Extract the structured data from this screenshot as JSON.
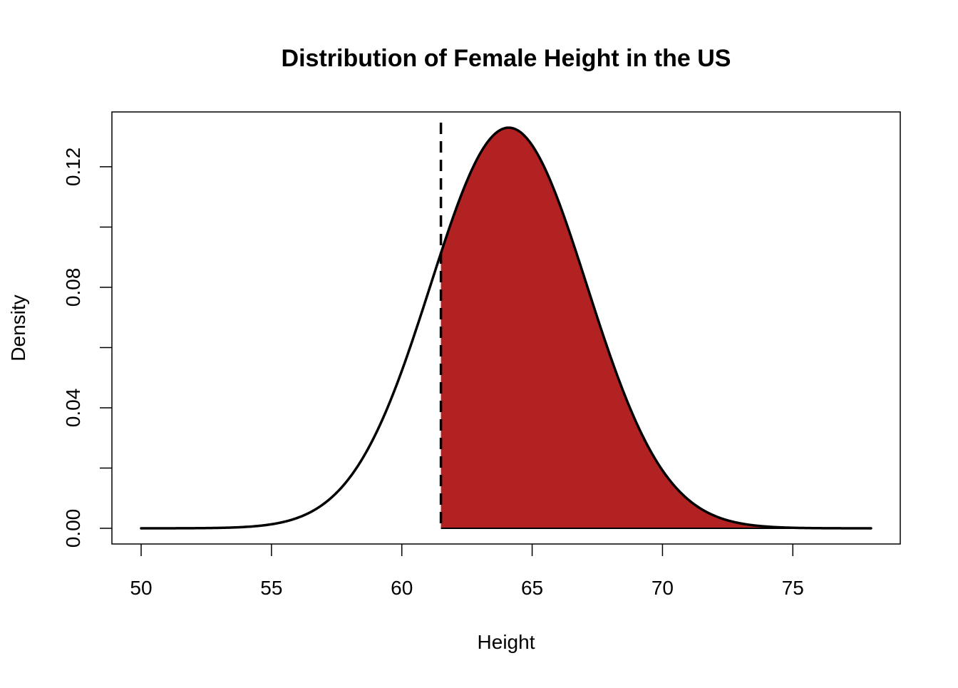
{
  "chart_data": {
    "type": "area",
    "title": "Distribution of Female Height in the US",
    "xlabel": "Height",
    "ylabel": "Density",
    "xlim": [
      50,
      78
    ],
    "ylim": [
      0,
      0.133
    ],
    "x_ticks": [
      50,
      55,
      60,
      65,
      70,
      75
    ],
    "x_tick_labels": [
      "50",
      "55",
      "60",
      "65",
      "70",
      "75"
    ],
    "y_ticks": [
      0.0,
      0.02,
      0.04,
      0.06,
      0.08,
      0.1,
      0.12
    ],
    "y_tick_labels": [
      "0.00",
      "",
      "0.04",
      "",
      "0.08",
      "",
      "0.12"
    ],
    "distribution": {
      "family": "normal",
      "mean": 64.1,
      "sd": 3.0
    },
    "cutoff_x": 61.5,
    "shaded_region": {
      "from": 61.5,
      "to": 78
    },
    "grid": false,
    "legend": "none",
    "colors": {
      "shade": "#B22222",
      "curve": "#000000",
      "cutoff_line": "#000000",
      "frame": "#000000"
    }
  }
}
